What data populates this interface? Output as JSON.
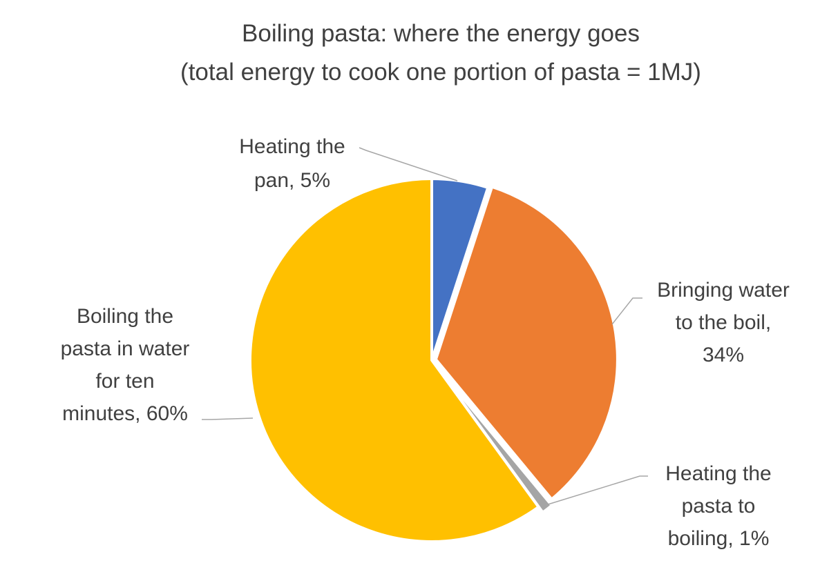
{
  "chart_data": {
    "type": "pie",
    "title": "Boiling pasta: where the energy goes",
    "subtitle": "(total energy to cook one portion of pasta = 1MJ)",
    "legend": "none",
    "slices": [
      {
        "label": "Heating the pan, 5%",
        "category": "Heating the pan",
        "value": 5,
        "color": "#4472c4"
      },
      {
        "label": "Bringing water to the boil, 34%",
        "category": "Bringing water to the boil",
        "value": 34,
        "color": "#ed7d31"
      },
      {
        "label": "Heating the pasta to boiling, 1%",
        "category": "Heating the pasta to boiling",
        "value": 1,
        "color": "#a5a5a5"
      },
      {
        "label": "Boiling the pasta in water for ten minutes, 60%",
        "category": "Boiling the pasta in water for ten minutes",
        "value": 60,
        "color": "#ffc000"
      }
    ]
  }
}
